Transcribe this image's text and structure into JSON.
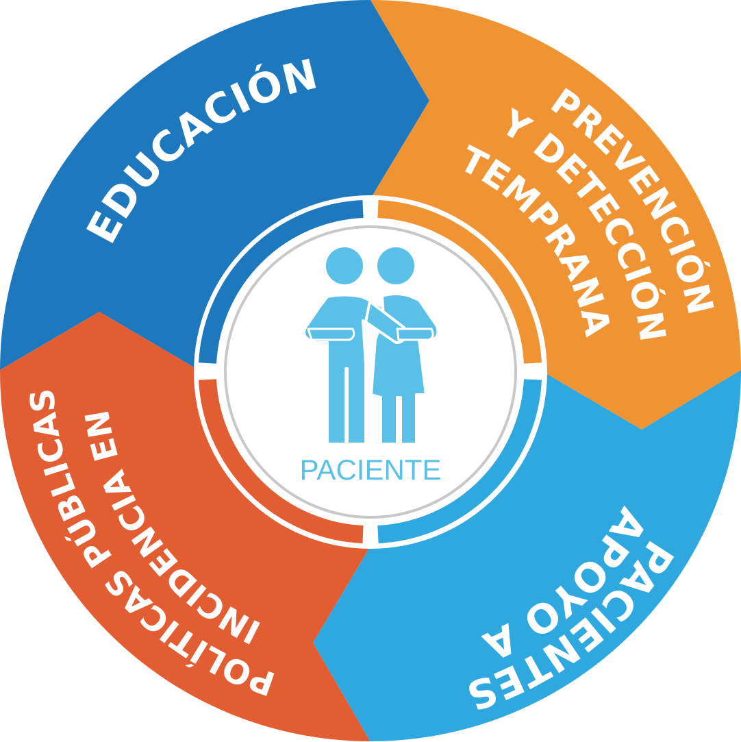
{
  "center": {
    "label": "PACIENTE",
    "icon": "two-people-icon"
  },
  "segments": [
    {
      "id": "educacion",
      "lines": [
        "EDUCACIÓN"
      ],
      "color": "#1e78bd"
    },
    {
      "id": "prevencion",
      "lines": [
        "PREVENCIÓN",
        "Y DETECCIÓN",
        "TEMPRANA"
      ],
      "color": "#f09433"
    },
    {
      "id": "apoyo",
      "lines": [
        "APOYO A",
        "PACIENTES"
      ],
      "color": "#2fa8e0"
    },
    {
      "id": "incidencia",
      "lines": [
        "INCIDENCIA EN",
        "POLÍTICAS PÚBLICAS"
      ],
      "color": "#e25e32"
    }
  ],
  "colors": {
    "ring_blue": "#1e78bd",
    "ring_orange": "#f09433",
    "ring_light_blue": "#2fa8e0",
    "ring_red": "#e25e32",
    "figure": "#5bc0e8",
    "inner_ring": "#c8c8c8",
    "background": "#ffffff"
  }
}
